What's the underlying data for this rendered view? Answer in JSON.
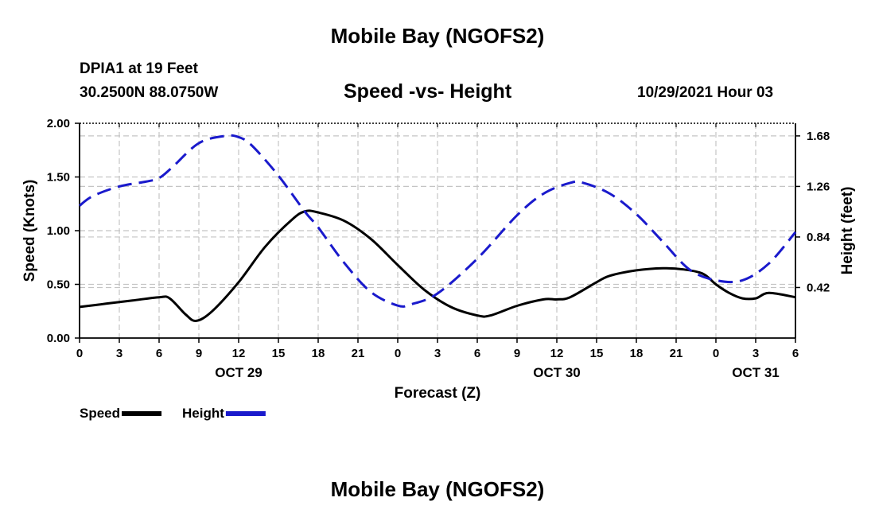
{
  "page": {
    "title": "Mobile Bay (NGOFS2)",
    "title_bottom": "Mobile Bay (NGOFS2)",
    "station": "DPIA1 at 19 Feet",
    "coords": "30.2500N  88.0750W",
    "datetime": "10/29/2021 Hour 03"
  },
  "chart_data": {
    "type": "line",
    "title": "Speed -vs- Height",
    "xlabel": "Forecast (Z)",
    "ylabel": "Speed (Knots)",
    "ylabel_right": "Height (feet)",
    "x_range": [
      0,
      54
    ],
    "xtick_labels": [
      "0",
      "3",
      "6",
      "9",
      "12",
      "15",
      "18",
      "21",
      "0",
      "3",
      "6",
      "9",
      "12",
      "15",
      "18",
      "21",
      "0",
      "3",
      "6"
    ],
    "day_labels": [
      {
        "label": "OCT 29",
        "hour": 12
      },
      {
        "label": "OCT 30",
        "hour": 36
      },
      {
        "label": "OCT 31",
        "hour": 51
      }
    ],
    "ylim_left": [
      0,
      2.0
    ],
    "yticks_left": [
      "0.00",
      "0.50",
      "1.00",
      "1.50",
      "2.00"
    ],
    "ylim_right": [
      0,
      1.785
    ],
    "yticks_right": [
      {
        "value": 0.42,
        "label": "0.42"
      },
      {
        "value": 0.84,
        "label": "0.84"
      },
      {
        "value": 1.26,
        "label": "1.26"
      },
      {
        "value": 1.68,
        "label": "1.68"
      }
    ],
    "grid": true,
    "series": [
      {
        "name": "Speed",
        "axis": "left",
        "color": "#000000",
        "dash": "solid",
        "x": [
          0,
          2,
          4,
          6,
          6.8,
          8,
          8.8,
          10,
          12,
          14,
          16,
          17,
          18,
          20,
          22,
          24,
          26,
          28,
          30,
          31,
          33,
          35,
          36,
          37,
          39,
          40,
          42,
          44,
          45.5,
          47,
          48,
          49,
          50,
          51,
          52,
          54
        ],
        "y": [
          0.29,
          0.32,
          0.35,
          0.38,
          0.37,
          0.22,
          0.16,
          0.25,
          0.52,
          0.85,
          1.1,
          1.18,
          1.17,
          1.09,
          0.92,
          0.68,
          0.45,
          0.29,
          0.21,
          0.21,
          0.3,
          0.36,
          0.36,
          0.38,
          0.52,
          0.58,
          0.63,
          0.65,
          0.64,
          0.6,
          0.5,
          0.42,
          0.37,
          0.37,
          0.42,
          0.38
        ]
      },
      {
        "name": "Height",
        "axis": "right",
        "color": "#1a1acc",
        "dash": "dashed",
        "x": [
          0,
          1,
          3,
          5,
          6,
          7,
          9,
          11,
          12,
          13,
          15,
          17,
          18,
          20,
          22,
          24,
          25,
          27,
          30,
          33,
          35,
          37,
          38,
          40,
          42,
          44,
          46,
          48,
          50,
          52,
          54
        ],
        "y": [
          1.1,
          1.18,
          1.26,
          1.3,
          1.33,
          1.42,
          1.62,
          1.68,
          1.67,
          1.6,
          1.35,
          1.05,
          0.92,
          0.62,
          0.38,
          0.27,
          0.28,
          0.37,
          0.66,
          1.02,
          1.2,
          1.29,
          1.29,
          1.2,
          1.03,
          0.8,
          0.57,
          0.48,
          0.48,
          0.62,
          0.88
        ]
      }
    ],
    "legend": {
      "placement": "bottom-left",
      "items": [
        {
          "label": "Speed",
          "color": "#000000"
        },
        {
          "label": "Height",
          "color": "#1a1acc"
        }
      ]
    }
  }
}
